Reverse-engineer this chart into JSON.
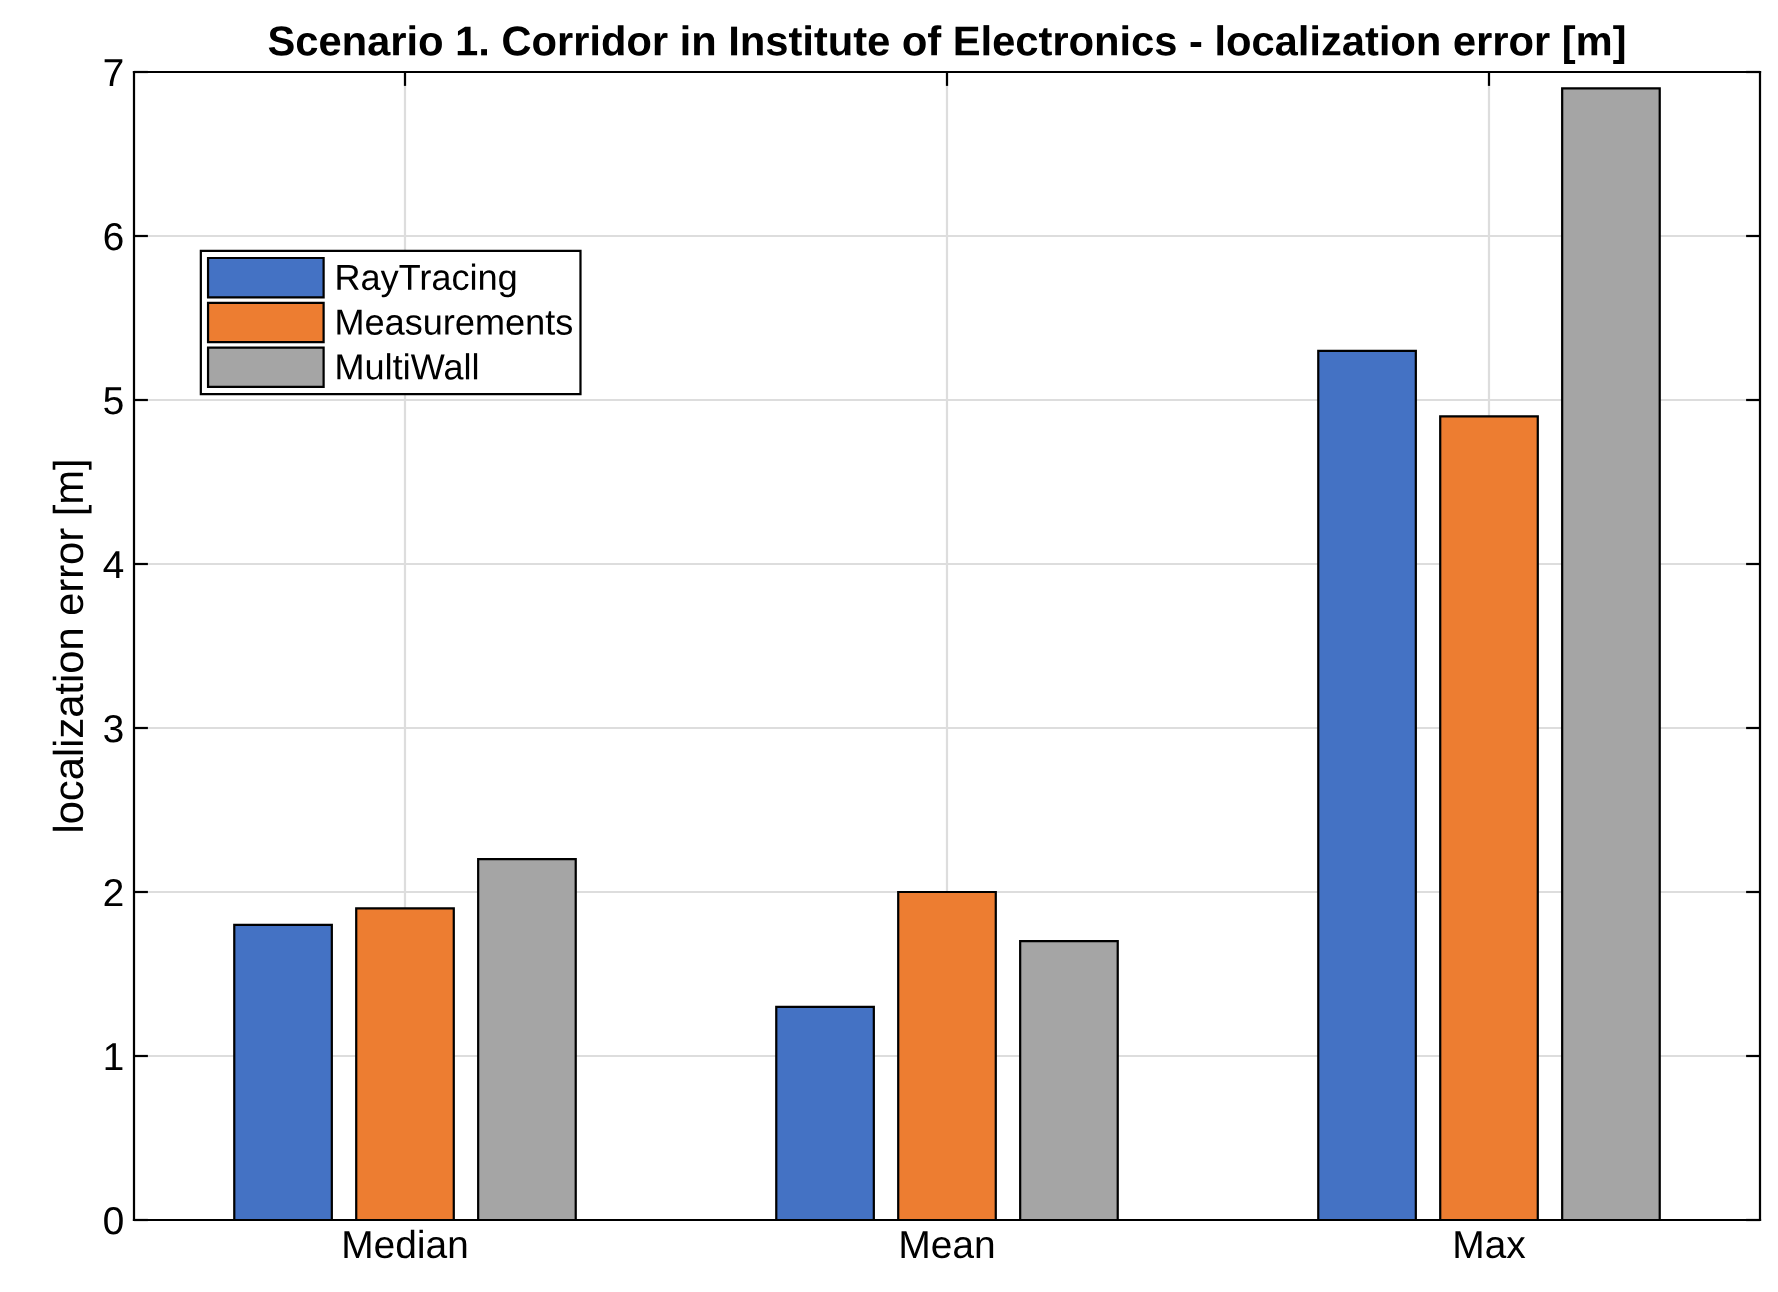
{
  "chart_data": {
    "type": "bar",
    "title": "Scenario 1. Corridor in Institute of Electronics - localization error [m]",
    "ylabel": "localization error [m]",
    "categories": [
      "Median",
      "Mean",
      "Max"
    ],
    "series": [
      {
        "name": "RayTracing",
        "color": "#4472c4",
        "values": [
          1.8,
          1.3,
          5.3
        ]
      },
      {
        "name": "Measurements",
        "color": "#ed7d31",
        "values": [
          1.9,
          2.0,
          4.9
        ]
      },
      {
        "name": "MultiWall",
        "color": "#a5a5a5",
        "values": [
          2.2,
          1.7,
          6.9
        ]
      }
    ],
    "ylim": [
      0,
      7
    ],
    "yticks": [
      0,
      1,
      2,
      3,
      4,
      5,
      6,
      7
    ],
    "grid": true,
    "legend": "top left"
  }
}
